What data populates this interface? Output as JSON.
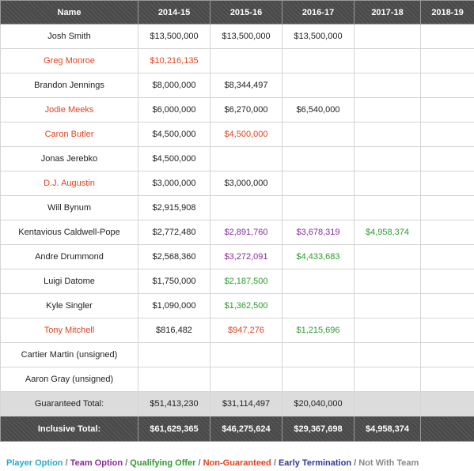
{
  "colors": {
    "player_option": "#2aa9c7",
    "team_option": "#8b2a9e",
    "qualifying_offer": "#2e9a2e",
    "non_guaranteed": "#e2421d",
    "early_termination": "#2c3a9a",
    "not_with_team": "#888888",
    "default": "#222222"
  },
  "table": {
    "headers": [
      "Name",
      "2014-15",
      "2015-16",
      "2016-17",
      "2017-18",
      "2018-19"
    ],
    "rows": [
      {
        "name": "Josh Smith",
        "name_color": "default",
        "cells": [
          {
            "v": "$13,500,000",
            "c": "default"
          },
          {
            "v": "$13,500,000",
            "c": "default"
          },
          {
            "v": "$13,500,000",
            "c": "default"
          },
          {
            "v": "",
            "c": "default"
          },
          {
            "v": "",
            "c": "default"
          }
        ]
      },
      {
        "name": "Greg Monroe",
        "name_color": "non_guaranteed",
        "cells": [
          {
            "v": "$10,216,135",
            "c": "non_guaranteed"
          },
          {
            "v": "",
            "c": "default"
          },
          {
            "v": "",
            "c": "default"
          },
          {
            "v": "",
            "c": "default"
          },
          {
            "v": "",
            "c": "default"
          }
        ]
      },
      {
        "name": "Brandon Jennings",
        "name_color": "default",
        "cells": [
          {
            "v": "$8,000,000",
            "c": "default"
          },
          {
            "v": "$8,344,497",
            "c": "default"
          },
          {
            "v": "",
            "c": "default"
          },
          {
            "v": "",
            "c": "default"
          },
          {
            "v": "",
            "c": "default"
          }
        ]
      },
      {
        "name": "Jodie Meeks",
        "name_color": "non_guaranteed",
        "cells": [
          {
            "v": "$6,000,000",
            "c": "default"
          },
          {
            "v": "$6,270,000",
            "c": "default"
          },
          {
            "v": "$6,540,000",
            "c": "default"
          },
          {
            "v": "",
            "c": "default"
          },
          {
            "v": "",
            "c": "default"
          }
        ]
      },
      {
        "name": "Caron Butler",
        "name_color": "non_guaranteed",
        "cells": [
          {
            "v": "$4,500,000",
            "c": "default"
          },
          {
            "v": "$4,500,000",
            "c": "non_guaranteed"
          },
          {
            "v": "",
            "c": "default"
          },
          {
            "v": "",
            "c": "default"
          },
          {
            "v": "",
            "c": "default"
          }
        ]
      },
      {
        "name": "Jonas Jerebko",
        "name_color": "default",
        "cells": [
          {
            "v": "$4,500,000",
            "c": "default"
          },
          {
            "v": "",
            "c": "default"
          },
          {
            "v": "",
            "c": "default"
          },
          {
            "v": "",
            "c": "default"
          },
          {
            "v": "",
            "c": "default"
          }
        ]
      },
      {
        "name": "D.J. Augustin",
        "name_color": "non_guaranteed",
        "cells": [
          {
            "v": "$3,000,000",
            "c": "default"
          },
          {
            "v": "$3,000,000",
            "c": "default"
          },
          {
            "v": "",
            "c": "default"
          },
          {
            "v": "",
            "c": "default"
          },
          {
            "v": "",
            "c": "default"
          }
        ]
      },
      {
        "name": "Will Bynum",
        "name_color": "default",
        "cells": [
          {
            "v": "$2,915,908",
            "c": "default"
          },
          {
            "v": "",
            "c": "default"
          },
          {
            "v": "",
            "c": "default"
          },
          {
            "v": "",
            "c": "default"
          },
          {
            "v": "",
            "c": "default"
          }
        ]
      },
      {
        "name": "Kentavious Caldwell-Pope",
        "name_color": "default",
        "cells": [
          {
            "v": "$2,772,480",
            "c": "default"
          },
          {
            "v": "$2,891,760",
            "c": "team_option"
          },
          {
            "v": "$3,678,319",
            "c": "team_option"
          },
          {
            "v": "$4,958,374",
            "c": "qualifying_offer"
          },
          {
            "v": "",
            "c": "default"
          }
        ]
      },
      {
        "name": "Andre Drummond",
        "name_color": "default",
        "cells": [
          {
            "v": "$2,568,360",
            "c": "default"
          },
          {
            "v": "$3,272,091",
            "c": "team_option"
          },
          {
            "v": "$4,433,683",
            "c": "qualifying_offer"
          },
          {
            "v": "",
            "c": "default"
          },
          {
            "v": "",
            "c": "default"
          }
        ]
      },
      {
        "name": "Luigi Datome",
        "name_color": "default",
        "cells": [
          {
            "v": "$1,750,000",
            "c": "default"
          },
          {
            "v": "$2,187,500",
            "c": "qualifying_offer"
          },
          {
            "v": "",
            "c": "default"
          },
          {
            "v": "",
            "c": "default"
          },
          {
            "v": "",
            "c": "default"
          }
        ]
      },
      {
        "name": "Kyle Singler",
        "name_color": "default",
        "cells": [
          {
            "v": "$1,090,000",
            "c": "default"
          },
          {
            "v": "$1,362,500",
            "c": "qualifying_offer"
          },
          {
            "v": "",
            "c": "default"
          },
          {
            "v": "",
            "c": "default"
          },
          {
            "v": "",
            "c": "default"
          }
        ]
      },
      {
        "name": "Tony Mitchell",
        "name_color": "non_guaranteed",
        "cells": [
          {
            "v": "$816,482",
            "c": "default"
          },
          {
            "v": "$947,276",
            "c": "non_guaranteed"
          },
          {
            "v": "$1,215,696",
            "c": "qualifying_offer"
          },
          {
            "v": "",
            "c": "default"
          },
          {
            "v": "",
            "c": "default"
          }
        ]
      },
      {
        "name": "Cartier Martin (unsigned)",
        "name_color": "default",
        "cells": [
          {
            "v": "",
            "c": "default"
          },
          {
            "v": "",
            "c": "default"
          },
          {
            "v": "",
            "c": "default"
          },
          {
            "v": "",
            "c": "default"
          },
          {
            "v": "",
            "c": "default"
          }
        ]
      },
      {
        "name": "Aaron Gray (unsigned)",
        "name_color": "default",
        "cells": [
          {
            "v": "",
            "c": "default"
          },
          {
            "v": "",
            "c": "default"
          },
          {
            "v": "",
            "c": "default"
          },
          {
            "v": "",
            "c": "default"
          },
          {
            "v": "",
            "c": "default"
          }
        ]
      }
    ],
    "guaranteed_total": {
      "label": "Guaranteed Total:",
      "values": [
        "$51,413,230",
        "$31,114,497",
        "$20,040,000",
        "",
        ""
      ]
    },
    "inclusive_total": {
      "label": "Inclusive Total:",
      "values": [
        "$61,629,365",
        "$46,275,624",
        "$29,367,698",
        "$4,958,374",
        ""
      ]
    }
  },
  "legend": [
    {
      "label": "Player Option",
      "color": "player_option"
    },
    {
      "label": "Team Option",
      "color": "team_option"
    },
    {
      "label": "Qualifying Offer",
      "color": "qualifying_offer"
    },
    {
      "label": "Non-Guaranteed",
      "color": "non_guaranteed"
    },
    {
      "label": "Early Termination",
      "color": "early_termination"
    },
    {
      "label": "Not With Team",
      "color": "not_with_team"
    }
  ],
  "legend_separator": " / "
}
